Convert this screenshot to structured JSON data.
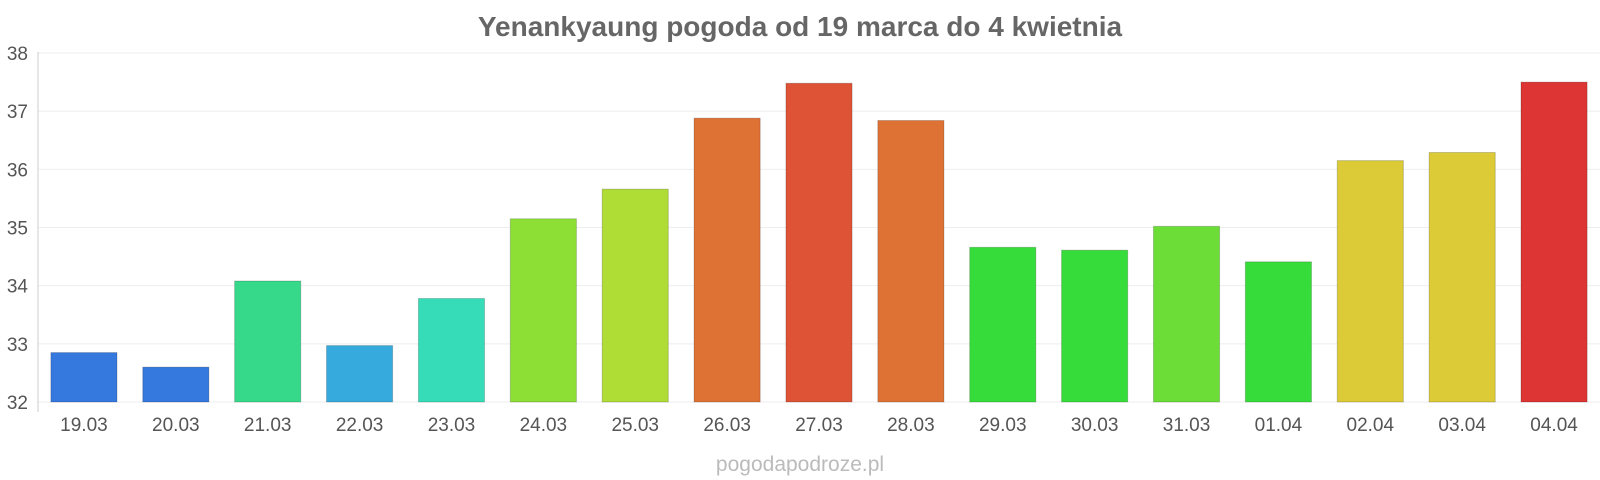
{
  "chart_data": {
    "type": "bar",
    "title": "Yenankyaung pogoda od 19 marca do 4 kwietnia",
    "xlabel": "",
    "ylabel": "",
    "ylim": [
      32,
      38
    ],
    "yticks": [
      32,
      33,
      34,
      35,
      36,
      37,
      38
    ],
    "grid": true,
    "categories": [
      "19.03",
      "20.03",
      "21.03",
      "22.03",
      "23.03",
      "24.03",
      "25.03",
      "26.03",
      "27.03",
      "28.03",
      "29.03",
      "30.03",
      "31.03",
      "01.04",
      "02.04",
      "03.04",
      "04.04"
    ],
    "values": [
      32.85,
      32.6,
      34.08,
      32.97,
      33.78,
      35.15,
      35.66,
      36.88,
      37.48,
      36.84,
      34.66,
      34.61,
      35.02,
      34.41,
      36.15,
      36.29,
      37.5
    ],
    "colors": [
      "#3578de",
      "#3578de",
      "#36d98a",
      "#36aadc",
      "#36dcb7",
      "#8ddf36",
      "#b0dc36",
      "#de7134",
      "#de5336",
      "#de7134",
      "#36dd3a",
      "#36dd3a",
      "#6cdd36",
      "#36dd3a",
      "#dccb36",
      "#dccb36",
      "#dd3434"
    ]
  },
  "watermark": "pogodapodroze.pl"
}
